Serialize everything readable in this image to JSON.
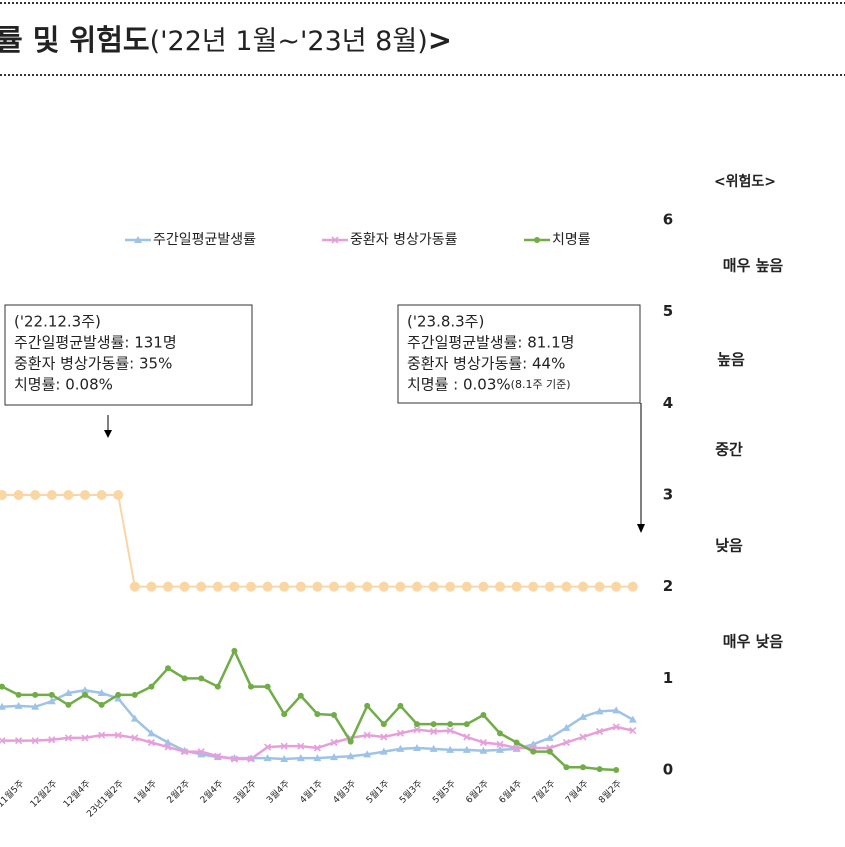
{
  "chart_data": {
    "type": "line",
    "title": {
      "bold": "률 및 위험도",
      "normal": "('22년 1월~'23년 8월)",
      "tail": ">"
    },
    "risk_title": "<위험도>",
    "risk_levels": [
      "매우 높음",
      "높음",
      "중간",
      "낮음",
      "매우 낮음"
    ],
    "categories": [
      null,
      "11월5주",
      null,
      "12월2주",
      null,
      "12월4주",
      null,
      "23년1월2주",
      null,
      "1월4주",
      null,
      "2월2주",
      null,
      "2월4주",
      null,
      "3월2주",
      null,
      "3월4주",
      null,
      "4월1주",
      null,
      "4월3주",
      null,
      "5월1주",
      null,
      "5월3주",
      null,
      "5월5주",
      null,
      "6월2주",
      null,
      "6월4주",
      null,
      "7월2주",
      null,
      "7월4주",
      null,
      "8월2주",
      null
    ],
    "ylim": [
      0,
      6
    ],
    "yticks": [
      0,
      1,
      2,
      3,
      4,
      5,
      6
    ],
    "series": [
      {
        "name": "주간일평균발생률",
        "color": "#9dc3e6",
        "marker": "triangle",
        "values": [
          0.69,
          0.7,
          0.69,
          0.75,
          0.84,
          0.87,
          0.84,
          0.78,
          0.56,
          0.4,
          0.3,
          0.21,
          0.17,
          0.14,
          0.13,
          0.13,
          0.13,
          0.12,
          0.13,
          0.13,
          0.14,
          0.15,
          0.17,
          0.2,
          0.23,
          0.24,
          0.23,
          0.22,
          0.22,
          0.21,
          0.22,
          0.23,
          0.28,
          0.35,
          0.46,
          0.58,
          0.64,
          0.65,
          0.55
        ]
      },
      {
        "name": "중환자 병상가동률",
        "color": "#e79fdc",
        "marker": "x",
        "values": [
          0.32,
          0.32,
          0.32,
          0.33,
          0.35,
          0.35,
          0.38,
          0.38,
          0.35,
          0.3,
          0.25,
          0.2,
          0.2,
          0.15,
          0.12,
          0.12,
          0.25,
          0.26,
          0.26,
          0.24,
          0.3,
          0.35,
          0.38,
          0.36,
          0.4,
          0.44,
          0.42,
          0.43,
          0.36,
          0.3,
          0.28,
          0.24,
          0.24,
          0.24,
          0.3,
          0.36,
          0.42,
          0.47,
          0.43
        ]
      },
      {
        "name": "치명률",
        "color": "#70ad47",
        "marker": "circle",
        "values": [
          0.91,
          0.82,
          0.82,
          0.82,
          0.71,
          0.82,
          0.71,
          0.82,
          0.82,
          0.91,
          1.11,
          1.0,
          1.0,
          0.91,
          1.3,
          0.91,
          0.91,
          0.61,
          0.81,
          0.61,
          0.6,
          0.31,
          0.7,
          0.5,
          0.7,
          0.5,
          0.5,
          0.5,
          0.5,
          0.6,
          0.4,
          0.3,
          0.2,
          0.2,
          0.03,
          0.03,
          0.01,
          0.0,
          null
        ]
      },
      {
        "color": "#fad6a5",
        "marker": "dots",
        "values": [
          3,
          3,
          3,
          3,
          3,
          3,
          3,
          3,
          2,
          2,
          2,
          2,
          2,
          2,
          2,
          2,
          2,
          2,
          2,
          2,
          2,
          2,
          2,
          2,
          2,
          2,
          2,
          2,
          2,
          2,
          2,
          2,
          2,
          2,
          2,
          2,
          2,
          2,
          2
        ]
      }
    ],
    "annotations": [
      {
        "lines": [
          "('22.12.3주)",
          "주간일평균발생률: 131명",
          "중환자  병상가동률: 35%",
          "치명률: 0.08%"
        ]
      },
      {
        "lines": [
          "('23.8.3주)",
          "주간일평균발생률: 81.1명",
          "중환자  병상가동률: 44%",
          "치명률 : 0.03%"
        ],
        "note": "(8.1주 기준)"
      }
    ]
  }
}
